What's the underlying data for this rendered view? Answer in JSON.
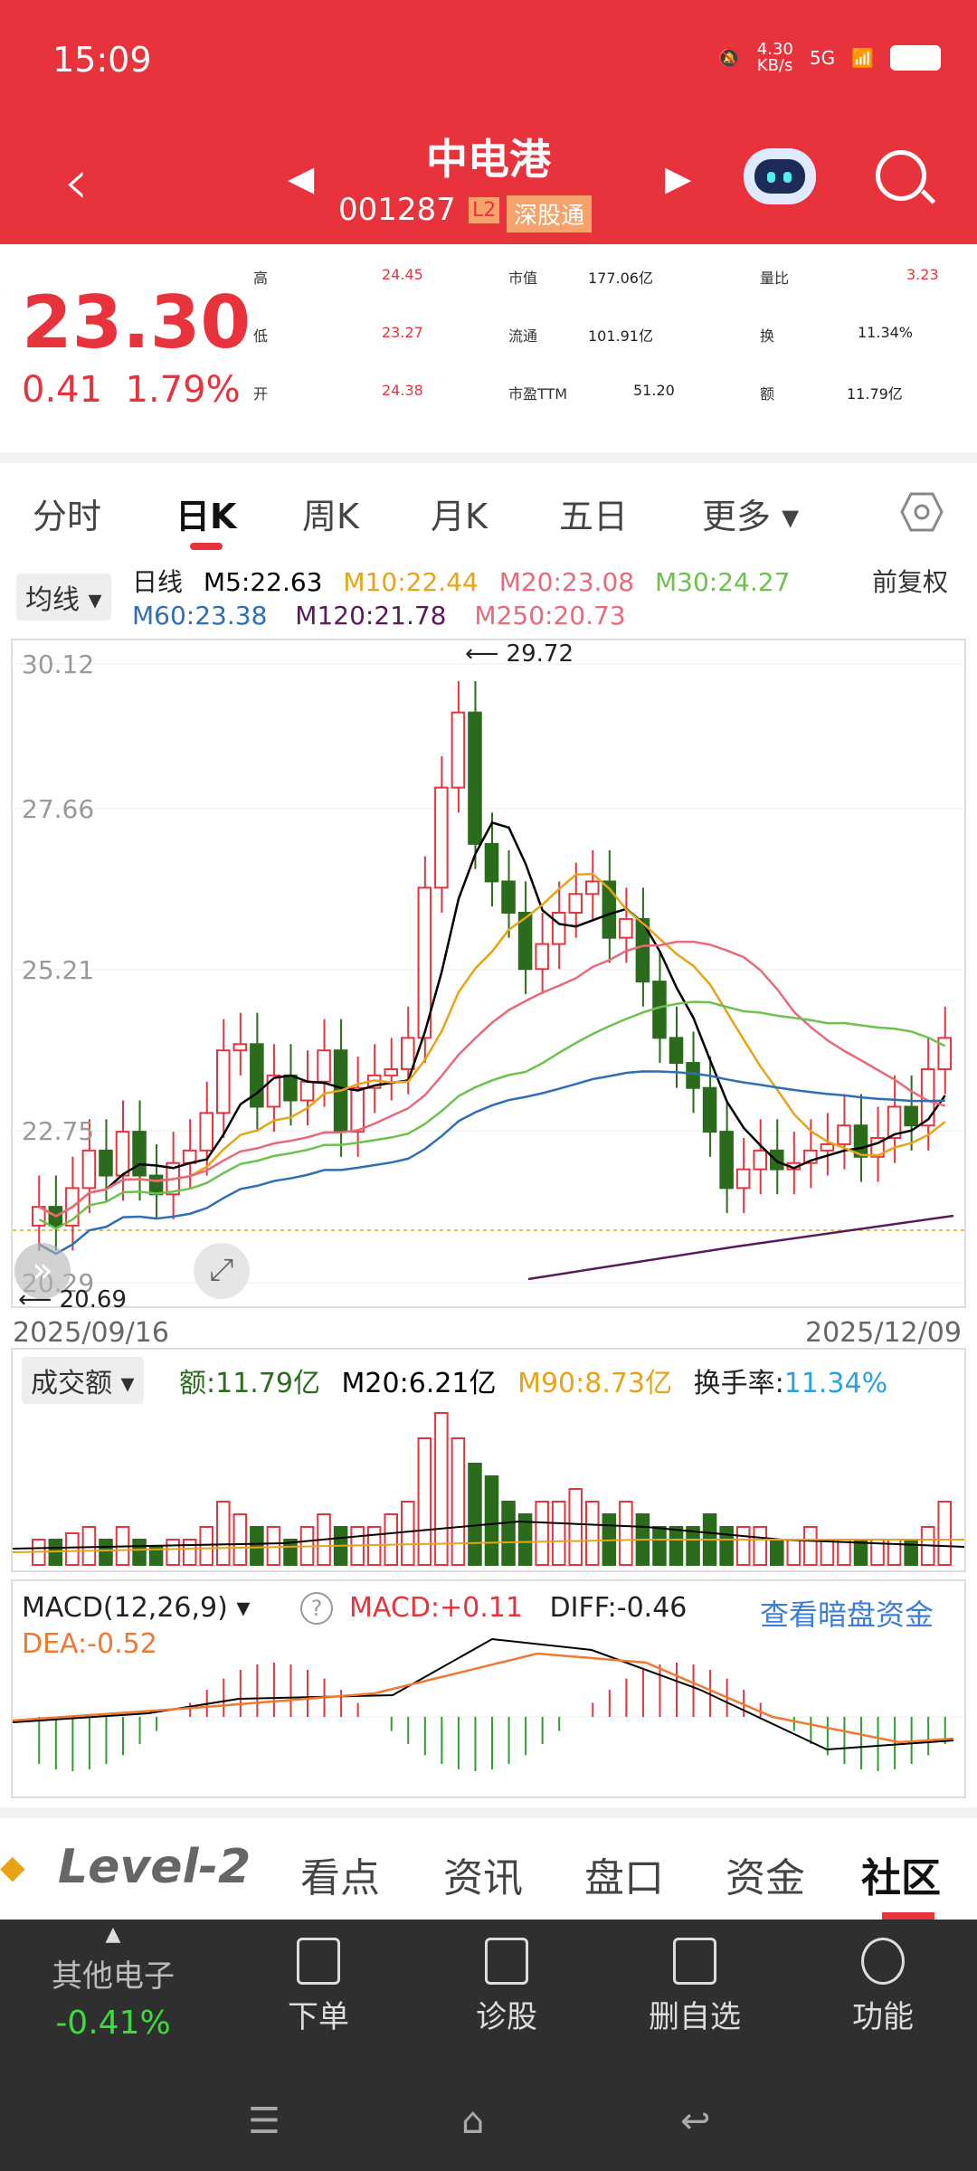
{
  "status": {
    "time": "15:09",
    "net_speed": "4.30\nKB/s",
    "signal": "5G"
  },
  "header": {
    "title": "中电港",
    "code": "001287",
    "level": "L2",
    "tag": "深股通"
  },
  "quote": {
    "price": "23.30",
    "change": "0.41",
    "change_pct": "1.79%",
    "rows": [
      {
        "l1": "高",
        "v1": "24.45",
        "l2": "市值",
        "v2": "177.06亿",
        "l3": "量比",
        "v3": "3.23"
      },
      {
        "l1": "低",
        "v1": "23.27",
        "l2": "流通",
        "v2": "101.91亿",
        "l3": "换",
        "v3": "11.34%"
      },
      {
        "l1": "开",
        "v1": "24.38",
        "l2": "市盈TTM",
        "v2": "51.20",
        "l3": "额",
        "v3": "11.79亿"
      }
    ]
  },
  "tabs": [
    "分时",
    "日K",
    "周K",
    "月K",
    "五日",
    "更多"
  ],
  "ma": {
    "btn": "均线",
    "line": "日线",
    "m5": "M5:22.63",
    "m10": "M10:22.44",
    "m20": "M20:23.08",
    "m30": "M30:24.27",
    "m60": "M60:23.38",
    "m120": "M120:21.78",
    "m250": "M250:20.73",
    "adj": "前复权"
  },
  "kline": {
    "y_ticks": [
      "30.12",
      "27.66",
      "25.21",
      "22.75",
      "20.29"
    ],
    "high_mark": "29.72",
    "low_mark": "20.69",
    "start_date": "2025/09/16",
    "end_date": "2025/12/09"
  },
  "volume": {
    "btn": "成交额",
    "amt": "额:11.79亿",
    "m20": "M20:6.21亿",
    "m90": "M90:8.73亿",
    "turn_label": "换手率:",
    "turn": "11.34%"
  },
  "macd": {
    "btn": "MACD(12,26,9)",
    "help": "?",
    "macd": "MACD:+0.11",
    "diff": "DIFF:-0.46",
    "dea": "DEA:-0.52",
    "link": "查看暗盘资金"
  },
  "subtabs": [
    "Level-2",
    "看点",
    "资讯",
    "盘口",
    "资金",
    "社区"
  ],
  "bottom": {
    "sector": "其他电子",
    "sector_chg": "-0.41%",
    "items": [
      "下单",
      "诊股",
      "删自选",
      "功能"
    ]
  },
  "colors": {
    "red": "#e8333d",
    "green": "#2b6b1c",
    "m5": "#000000",
    "m10": "#e8a317",
    "m20": "#e86a7a",
    "m30": "#6cc24a",
    "m60": "#2c6fb5",
    "m120": "#5a1a5a"
  }
}
